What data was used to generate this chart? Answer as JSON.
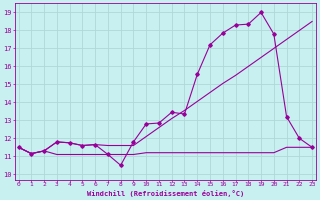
{
  "xlabel": "Windchill (Refroidissement éolien,°C)",
  "bg_color": "#c8f0f0",
  "grid_color": "#b0d8d8",
  "line_color": "#990099",
  "x_ticks": [
    0,
    1,
    2,
    3,
    4,
    5,
    6,
    7,
    8,
    9,
    10,
    11,
    12,
    13,
    14,
    15,
    16,
    17,
    18,
    19,
    20,
    21,
    22,
    23
  ],
  "y_ticks": [
    10,
    11,
    12,
    13,
    14,
    15,
    16,
    17,
    18,
    19
  ],
  "ylim": [
    9.7,
    19.5
  ],
  "xlim": [
    -0.3,
    23.3
  ],
  "line1_x": [
    0,
    1,
    2,
    3,
    4,
    5,
    6,
    7,
    8,
    9,
    10,
    11,
    12,
    13,
    14,
    15,
    16,
    17,
    18,
    19,
    20,
    21,
    22,
    23
  ],
  "line1_y": [
    11.5,
    11.15,
    11.3,
    11.1,
    11.1,
    11.1,
    11.1,
    11.1,
    11.1,
    11.1,
    11.2,
    11.2,
    11.2,
    11.2,
    11.2,
    11.2,
    11.2,
    11.2,
    11.2,
    11.2,
    11.2,
    11.5,
    11.5,
    11.5
  ],
  "line2_x": [
    0,
    1,
    2,
    3,
    4,
    5,
    6,
    7,
    8,
    9,
    10,
    11,
    12,
    13,
    14,
    15,
    16,
    17,
    18,
    19,
    20,
    21,
    22,
    23
  ],
  "line2_y": [
    11.5,
    11.15,
    11.3,
    11.8,
    11.75,
    11.6,
    11.65,
    11.6,
    11.6,
    11.6,
    12.1,
    12.6,
    13.1,
    13.55,
    14.05,
    14.55,
    15.05,
    15.5,
    16.0,
    16.5,
    17.0,
    17.5,
    18.0,
    18.5
  ],
  "line3_x": [
    0,
    1,
    2,
    3,
    4,
    5,
    6,
    7,
    8,
    9,
    10,
    11,
    12,
    13,
    14,
    15,
    16,
    17,
    18,
    19,
    20,
    21,
    22,
    23
  ],
  "line3_y": [
    11.5,
    11.15,
    11.3,
    11.8,
    11.75,
    11.6,
    11.65,
    11.1,
    10.5,
    11.8,
    12.8,
    12.85,
    13.45,
    13.35,
    15.55,
    17.2,
    17.85,
    18.3,
    18.35,
    19.0,
    17.8,
    13.2,
    12.0,
    11.5
  ]
}
